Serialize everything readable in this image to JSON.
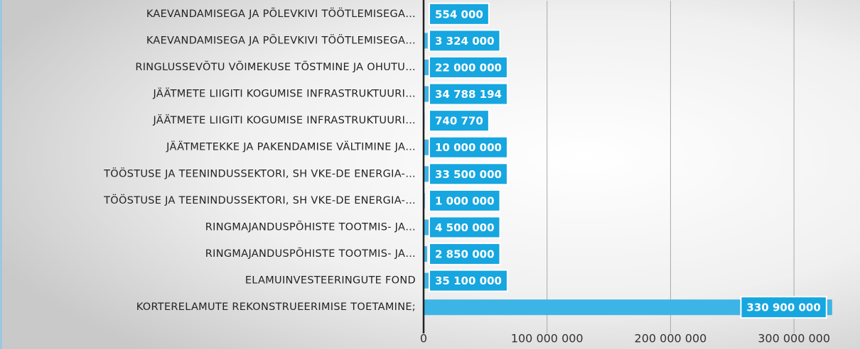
{
  "chart_data": {
    "type": "barh",
    "categories": [
      "KAEVANDAMISEGA JA PÕLEVKIVI TÖÖTLEMISEGA…",
      "KAEVANDAMISEGA JA PÕLEVKIVI TÖÖTLEMISEGA…",
      "RINGLUSSEVÕTU VÕIMEKUSE TÕSTMINE JA OHUTU…",
      "JÄÄTMETE LIIGITI KOGUMISE INFRASTRUKTUURI…",
      "JÄÄTMETE LIIGITI KOGUMISE INFRASTRUKTUURI…",
      "JÄÄTMETEKKE JA PAKENDAMISE VÄLTIMINE JA…",
      "TÖÖSTUSE JA TEENINDUSSEKTORI, SH VKE-DE ENERGIA-…",
      "TÖÖSTUSE JA TEENINDUSSEKTORI, SH VKE-DE ENERGIA-…",
      "RINGMAJANDUSPÕHISTE TOOTMIS- JA…",
      "RINGMAJANDUSPÕHISTE TOOTMIS- JA…",
      "ELAMUINVESTEERINGUTE FOND",
      "KORTERELAMUTE REKONSTRUEERIMISE TOETAMINE;"
    ],
    "values": [
      554000,
      3324000,
      22000000,
      34788194,
      740770,
      10000000,
      33500000,
      1000000,
      4500000,
      2850000,
      35100000,
      330900000
    ],
    "value_labels": [
      "554 000",
      "3 324 000",
      "22 000 000",
      "34 788 194",
      "740 770",
      "10 000 000",
      "33 500 000",
      "1 000 000",
      "4 500 000",
      "2 850 000",
      "35 100 000",
      "330 900 000"
    ],
    "color": "#3db4e6",
    "label_color": "#16a6e0",
    "xlim": [
      0,
      350000000
    ],
    "xticks": [
      0,
      {
        "value": 100000000,
        "label": "100 000 000"
      },
      {
        "value": 200000000,
        "label": "200 000 000"
      },
      {
        "value": 300000000,
        "label": "300 000 000"
      }
    ],
    "grid": true
  }
}
